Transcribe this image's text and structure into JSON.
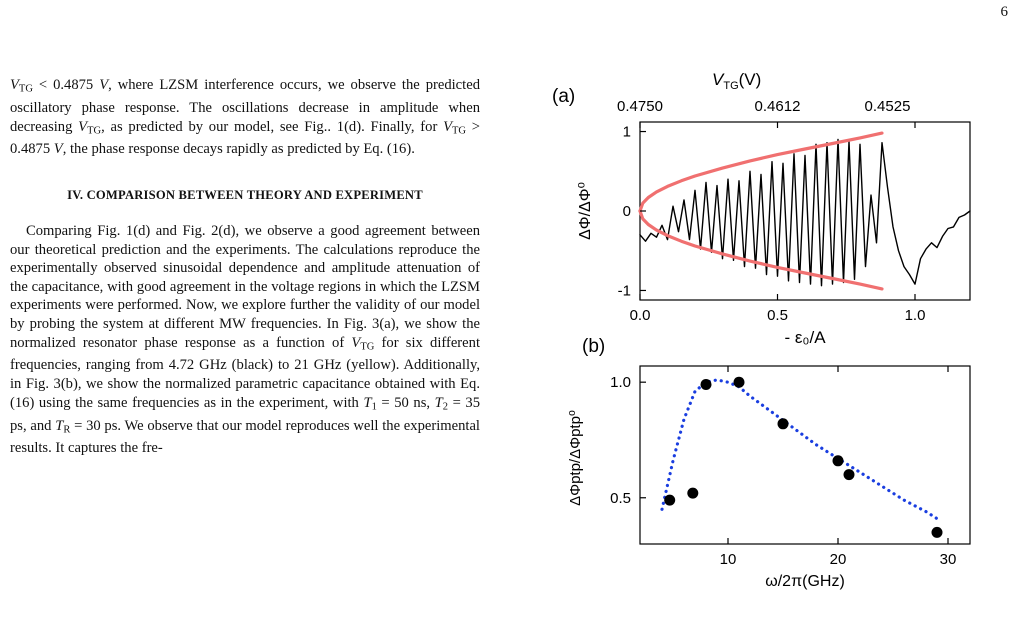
{
  "page_number": "6",
  "text": {
    "para1": [
      {
        "t": "V",
        "i": true
      },
      {
        "t": "TG",
        "s": true
      },
      {
        "t": " < 0.4875 "
      },
      {
        "t": "V",
        "i": true
      },
      {
        "t": ", where LZSM interference occurs, we observe the predicted oscillatory phase response. The oscillations decrease in amplitude when decreasing "
      },
      {
        "t": "V",
        "i": true
      },
      {
        "t": "TG",
        "s": true
      },
      {
        "t": ", as predicted by our model, see Fig.. 1(d). Finally, for "
      },
      {
        "t": "V",
        "i": true
      },
      {
        "t": "TG",
        "s": true
      },
      {
        "t": " > 0.4875 "
      },
      {
        "t": "V",
        "i": true
      },
      {
        "t": ", the phase response decays rapidly as predicted by Eq. (16)."
      }
    ],
    "heading": "IV.    COMPARISON BETWEEN THEORY AND EXPERIMENT",
    "para2": [
      {
        "t": "Comparing Fig. 1(d) and Fig. 2(d), we observe a good agreement between our theoretical prediction and the experiments. The calculations reproduce the experimentally observed sinusoidal dependence and amplitude attenuation of the capacitance, with good agreement in the voltage regions in which the LZSM experiments were performed. Now, we explore further the validity of our model by probing the system at different MW frequencies. In Fig. 3(a), we show the normalized resonator phase response as a function of "
      },
      {
        "t": "V",
        "i": true
      },
      {
        "t": "TG",
        "s": true
      },
      {
        "t": " for six different frequencies, ranging from 4.72 GHz (black) to 21 GHz (yellow). Additionally, in Fig. 3(b), we show the normalized parametric capacitance obtained with Eq. (16) using the same frequencies as in the experiment, with "
      },
      {
        "t": "T",
        "i": true
      },
      {
        "t": "1",
        "s": true
      },
      {
        "t": " = 50 ns, "
      },
      {
        "t": "T",
        "i": true
      },
      {
        "t": "2",
        "s": true
      },
      {
        "t": " = 35 ps, and "
      },
      {
        "t": "T",
        "i": true
      },
      {
        "t": "R",
        "s": true
      },
      {
        "t": " = 30 ps. We observe that our model reproduces well the experimental results. It captures the fre-"
      }
    ]
  },
  "figure": {
    "panel_a": {
      "label": "(a)",
      "top_axis_label_main": "V",
      "top_axis_label_sub": "TG",
      "top_axis_label_unit": "(V)",
      "top_ticks": [
        {
          "x": 0.0,
          "label": "0.4750"
        },
        {
          "x": 0.5,
          "label": "0.4612"
        },
        {
          "x": 0.9,
          "label": "0.4525"
        }
      ],
      "xlabel": "- ε₀/A",
      "ylabel": "ΔΦ/ΔΦ⁰",
      "x_ticks": [
        0.0,
        0.5,
        1.0
      ],
      "x_tick_labels": [
        "0.0",
        "0.5",
        "1.0"
      ],
      "y_ticks": [
        -1,
        0,
        1
      ],
      "y_tick_labels": [
        "-1",
        "0",
        "1"
      ]
    },
    "panel_b": {
      "label": "(b)",
      "xlabel": "ω/2π(GHz)",
      "ylabel": "ΔΦptp/ΔΦptp⁰",
      "x_ticks": [
        10,
        20,
        30
      ],
      "x_tick_labels": [
        "10",
        "20",
        "30"
      ],
      "y_ticks": [
        0.5,
        1.0
      ],
      "y_tick_labels": [
        "0.5",
        "1.0"
      ]
    }
  },
  "chart_data": [
    {
      "type": "line",
      "panel": "a",
      "xlim": [
        0,
        1.2
      ],
      "ylim": [
        -1.12,
        1.12
      ],
      "secondary_x_ticks": [
        {
          "x": 0.0,
          "label": "0.4750"
        },
        {
          "x": 0.5,
          "label": "0.4612"
        },
        {
          "x": 0.9,
          "label": "0.4525"
        }
      ],
      "series": [
        {
          "style": "black-line",
          "color": "#000000",
          "x": [
            0.0,
            0.02,
            0.04,
            0.06,
            0.08,
            0.1,
            0.12,
            0.14,
            0.16,
            0.18,
            0.2,
            0.22,
            0.24,
            0.26,
            0.28,
            0.3,
            0.32,
            0.34,
            0.36,
            0.38,
            0.4,
            0.42,
            0.44,
            0.46,
            0.48,
            0.5,
            0.52,
            0.54,
            0.56,
            0.58,
            0.6,
            0.62,
            0.64,
            0.66,
            0.68,
            0.7,
            0.72,
            0.74,
            0.76,
            0.78,
            0.8,
            0.82,
            0.84,
            0.86,
            0.88,
            0.9,
            0.92,
            0.94,
            0.96,
            0.98,
            1.0,
            1.02,
            1.04,
            1.06,
            1.08,
            1.1,
            1.12,
            1.14,
            1.16,
            1.18,
            1.2
          ],
          "y": [
            -0.3,
            -0.38,
            -0.28,
            -0.33,
            -0.18,
            -0.36,
            0.06,
            -0.26,
            0.14,
            -0.36,
            0.26,
            -0.48,
            0.36,
            -0.52,
            0.32,
            -0.6,
            0.4,
            -0.62,
            0.38,
            -0.7,
            0.5,
            -0.72,
            0.46,
            -0.8,
            0.62,
            -0.82,
            0.6,
            -0.88,
            0.72,
            -0.9,
            0.7,
            -0.92,
            0.84,
            -0.94,
            0.86,
            -0.92,
            0.9,
            -0.9,
            0.88,
            -0.86,
            0.84,
            -0.7,
            0.2,
            -0.4,
            0.86,
            0.3,
            -0.2,
            -0.5,
            -0.7,
            -0.8,
            -0.92,
            -0.6,
            -0.48,
            -0.4,
            -0.46,
            -0.32,
            -0.22,
            -0.2,
            -0.08,
            -0.05,
            0.0
          ]
        },
        {
          "style": "red-envelope-upper",
          "color": "#f07070",
          "x": [
            0.0,
            0.01,
            0.03,
            0.06,
            0.1,
            0.15,
            0.2,
            0.3,
            0.4,
            0.5,
            0.6,
            0.7,
            0.8,
            0.88
          ],
          "y": [
            0.0,
            0.1,
            0.17,
            0.24,
            0.31,
            0.38,
            0.44,
            0.54,
            0.63,
            0.71,
            0.78,
            0.85,
            0.92,
            0.98
          ]
        },
        {
          "style": "red-envelope-lower",
          "color": "#f07070",
          "x": [
            0.0,
            0.01,
            0.03,
            0.06,
            0.1,
            0.15,
            0.2,
            0.3,
            0.4,
            0.5,
            0.6,
            0.7,
            0.8,
            0.88
          ],
          "y": [
            0.0,
            -0.1,
            -0.17,
            -0.24,
            -0.31,
            -0.38,
            -0.44,
            -0.54,
            -0.63,
            -0.71,
            -0.78,
            -0.85,
            -0.92,
            -0.98
          ]
        }
      ]
    },
    {
      "type": "scatter",
      "panel": "b",
      "xlim": [
        2,
        32
      ],
      "ylim": [
        0.3,
        1.07
      ],
      "series": [
        {
          "style": "black-points",
          "color": "#000000",
          "x": [
            4.7,
            6.8,
            8.0,
            11.0,
            15.0,
            20.0,
            21.0,
            29.0
          ],
          "y": [
            0.49,
            0.52,
            0.99,
            1.0,
            0.82,
            0.66,
            0.6,
            0.35
          ]
        },
        {
          "style": "blue-dotted-fit",
          "color": "#1a3ee0",
          "x": [
            4.0,
            5.0,
            6.0,
            7.0,
            8.0,
            9.0,
            10.0,
            11.0,
            12.0,
            14.0,
            16.0,
            18.0,
            20.0,
            22.0,
            24.0,
            26.0,
            28.0,
            29.0
          ],
          "y": [
            0.45,
            0.66,
            0.84,
            0.96,
            1.0,
            1.01,
            1.0,
            0.98,
            0.94,
            0.87,
            0.8,
            0.73,
            0.67,
            0.61,
            0.55,
            0.49,
            0.44,
            0.41
          ]
        }
      ]
    }
  ]
}
